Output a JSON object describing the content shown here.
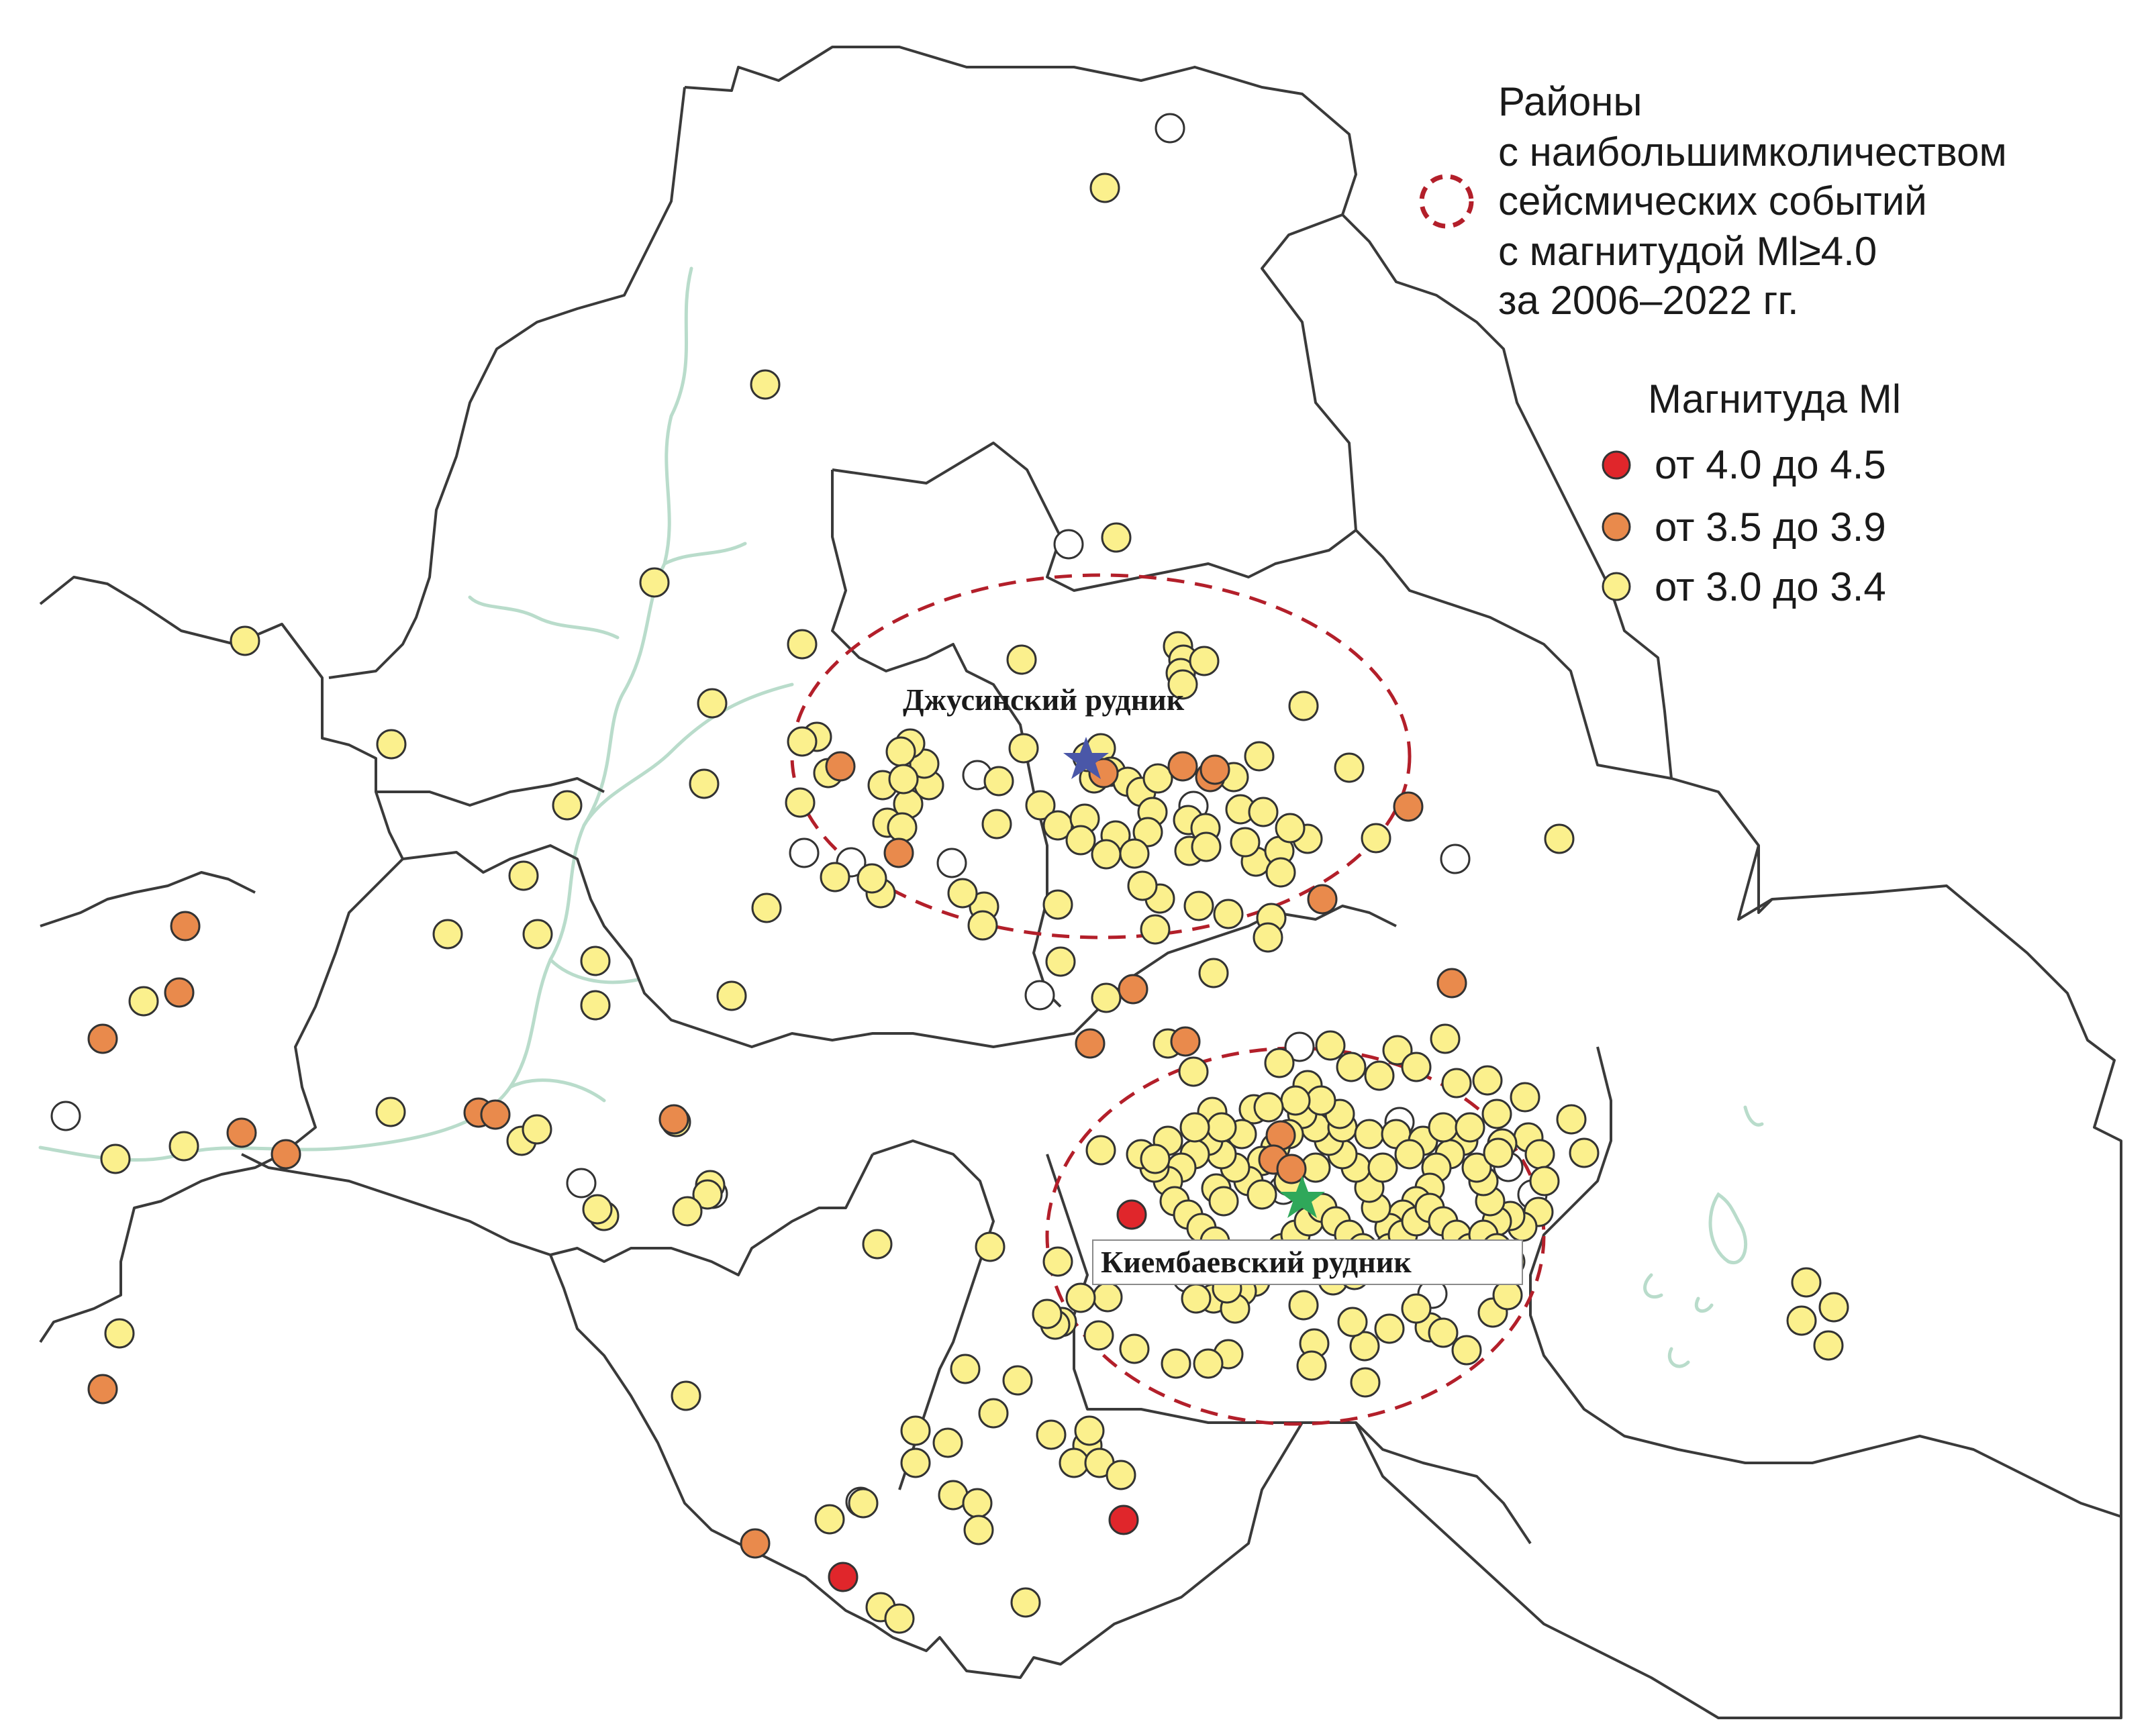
{
  "colors": {
    "red": "#e0262b",
    "orange": "#e98a4c",
    "yellow": "#fbf08d",
    "white": "#ffffff",
    "ellipse": "#b31f2a",
    "boundary": "#3a3a3a",
    "water": "#b9dccb",
    "star_blue": "#4a57a8",
    "star_green": "#2fa85a"
  },
  "legend": {
    "zone_lines": [
      "Районы",
      "с наибольшимколичеством",
      "сейсмических событий",
      "с магнитудой Ml≥4.0",
      "за 2006–2022 гг."
    ],
    "magnitude_title": "Магнитуда Ml",
    "items": [
      {
        "label": "от 4.0 до 4.5",
        "class": "red"
      },
      {
        "label": "от 3.5 до 3.9",
        "class": "orange"
      },
      {
        "label": "от 3.0 до 3.4",
        "class": "yellow"
      }
    ]
  },
  "mines": {
    "dzhusa": "Джусинский рудник",
    "kiembay": "Киембаевский рудник"
  },
  "events": {
    "red": [
      [
        1686,
        1810
      ],
      [
        1674,
        2265
      ],
      [
        1256,
        2350
      ]
    ],
    "orange": [
      [
        276,
        1380
      ],
      [
        267,
        1479
      ],
      [
        153,
        1548
      ],
      [
        360,
        1688
      ],
      [
        426,
        1720
      ],
      [
        713,
        1658
      ],
      [
        738,
        1661
      ],
      [
        1004,
        1668
      ],
      [
        1252,
        1142
      ],
      [
        1339,
        1271
      ],
      [
        1803,
        1158
      ],
      [
        2098,
        1202
      ],
      [
        2163,
        1465
      ],
      [
        1970,
        1340
      ],
      [
        1624,
        1555
      ],
      [
        1688,
        1474
      ],
      [
        1766,
        1552
      ],
      [
        1908,
        1692
      ],
      [
        1810,
        1147
      ],
      [
        1125,
        2300
      ],
      [
        153,
        2070
      ],
      [
        1644,
        1152
      ],
      [
        1762,
        1142
      ],
      [
        1897,
        1728
      ],
      [
        1924,
        1742
      ]
    ],
    "white": [
      [
        98,
        1663
      ],
      [
        866,
        1763
      ],
      [
        1743,
        191
      ],
      [
        1592,
        811
      ],
      [
        1456,
        1155
      ],
      [
        1268,
        1285
      ],
      [
        1198,
        1271
      ],
      [
        1418,
        1286
      ],
      [
        2168,
        1280
      ],
      [
        1549,
        1483
      ],
      [
        1936,
        1560
      ],
      [
        2085,
        1672
      ],
      [
        2283,
        1780
      ],
      [
        1912,
        1773
      ],
      [
        2134,
        1928
      ],
      [
        1788,
        1902
      ],
      [
        1769,
        1904
      ],
      [
        2247,
        1739
      ],
      [
        1282,
        2238
      ],
      [
        1778,
        1201
      ],
      [
        1062,
        1779
      ]
    ],
    "yellow": [
      [
        1646,
        280
      ],
      [
        1140,
        573
      ],
      [
        975,
        868
      ],
      [
        1663,
        801
      ],
      [
        365,
        955
      ],
      [
        583,
        1109
      ],
      [
        1061,
        1048
      ],
      [
        1195,
        960
      ],
      [
        1049,
        1168
      ],
      [
        845,
        1200
      ],
      [
        780,
        1305
      ],
      [
        667,
        1392
      ],
      [
        801,
        1392
      ],
      [
        887,
        1432
      ],
      [
        887,
        1498
      ],
      [
        1090,
        1484
      ],
      [
        1142,
        1353
      ],
      [
        214,
        1492
      ],
      [
        274,
        1708
      ],
      [
        172,
        1727
      ],
      [
        1007,
        1672
      ],
      [
        777,
        1700
      ],
      [
        800,
        1683
      ],
      [
        582,
        1657
      ],
      [
        1058,
        1766
      ],
      [
        1054,
        1780
      ],
      [
        1024,
        1805
      ],
      [
        900,
        1812
      ],
      [
        890,
        1802
      ],
      [
        1525,
        1115
      ],
      [
        1522,
        983
      ],
      [
        1755,
        963
      ],
      [
        1763,
        983
      ],
      [
        1759,
        1003
      ],
      [
        1794,
        985
      ],
      [
        1762,
        1020
      ],
      [
        1942,
        1052
      ],
      [
        2010,
        1144
      ],
      [
        2050,
        1249
      ],
      [
        2323,
        1250
      ],
      [
        1948,
        1250
      ],
      [
        1871,
        1284
      ],
      [
        1894,
        1368
      ],
      [
        1889,
        1397
      ],
      [
        1808,
        1450
      ],
      [
        1721,
        1385
      ],
      [
        1728,
        1339
      ],
      [
        1702,
        1320
      ],
      [
        1580,
        1433
      ],
      [
        1576,
        1348
      ],
      [
        1466,
        1351
      ],
      [
        1464,
        1379
      ],
      [
        1434,
        1331
      ],
      [
        1312,
        1331
      ],
      [
        1299,
        1309
      ],
      [
        1244,
        1307
      ],
      [
        1234,
        1152
      ],
      [
        1217,
        1098
      ],
      [
        1195,
        1105
      ],
      [
        1192,
        1196
      ],
      [
        1322,
        1226
      ],
      [
        1353,
        1198
      ],
      [
        1344,
        1233
      ],
      [
        1315,
        1170
      ],
      [
        1384,
        1170
      ],
      [
        1377,
        1138
      ],
      [
        1356,
        1108
      ],
      [
        1342,
        1120
      ],
      [
        1346,
        1161
      ],
      [
        1485,
        1228
      ],
      [
        1488,
        1164
      ],
      [
        1550,
        1200
      ],
      [
        1576,
        1230
      ],
      [
        1616,
        1220
      ],
      [
        1630,
        1160
      ],
      [
        1620,
        1128
      ],
      [
        1640,
        1115
      ],
      [
        1655,
        1150
      ],
      [
        1680,
        1165
      ],
      [
        1700,
        1180
      ],
      [
        1725,
        1160
      ],
      [
        1717,
        1210
      ],
      [
        1710,
        1240
      ],
      [
        1662,
        1245
      ],
      [
        1648,
        1273
      ],
      [
        1610,
        1252
      ],
      [
        1690,
        1272
      ],
      [
        1770,
        1222
      ],
      [
        1772,
        1268
      ],
      [
        1796,
        1234
      ],
      [
        1797,
        1262
      ],
      [
        1855,
        1255
      ],
      [
        1848,
        1206
      ],
      [
        1838,
        1158
      ],
      [
        1876,
        1127
      ],
      [
        1882,
        1210
      ],
      [
        1906,
        1268
      ],
      [
        1922,
        1234
      ],
      [
        1908,
        1300
      ],
      [
        1786,
        1350
      ],
      [
        1830,
        1362
      ],
      [
        1648,
        1487
      ],
      [
        1740,
        1555
      ],
      [
        1778,
        1597
      ],
      [
        1806,
        1657
      ],
      [
        1868,
        1653
      ],
      [
        1906,
        1584
      ],
      [
        1948,
        1617
      ],
      [
        1982,
        1558
      ],
      [
        2013,
        1590
      ],
      [
        2055,
        1603
      ],
      [
        2082,
        1565
      ],
      [
        2110,
        1590
      ],
      [
        2153,
        1548
      ],
      [
        2170,
        1614
      ],
      [
        2216,
        1610
      ],
      [
        2272,
        1635
      ],
      [
        2341,
        1668
      ],
      [
        2277,
        1695
      ],
      [
        2238,
        1704
      ],
      [
        2294,
        1720
      ],
      [
        2301,
        1760
      ],
      [
        2292,
        1806
      ],
      [
        2268,
        1828
      ],
      [
        2250,
        1812
      ],
      [
        2230,
        1820
      ],
      [
        2220,
        1790
      ],
      [
        2210,
        1760
      ],
      [
        2200,
        1740
      ],
      [
        2180,
        1700
      ],
      [
        2160,
        1720
      ],
      [
        2140,
        1740
      ],
      [
        2130,
        1770
      ],
      [
        2110,
        1790
      ],
      [
        2090,
        1810
      ],
      [
        2070,
        1830
      ],
      [
        2050,
        1800
      ],
      [
        2040,
        1770
      ],
      [
        2020,
        1740
      ],
      [
        2000,
        1720
      ],
      [
        1980,
        1700
      ],
      [
        1960,
        1680
      ],
      [
        1940,
        1660
      ],
      [
        1920,
        1690
      ],
      [
        1900,
        1710
      ],
      [
        1880,
        1730
      ],
      [
        1860,
        1760
      ],
      [
        1840,
        1740
      ],
      [
        1820,
        1720
      ],
      [
        1800,
        1700
      ],
      [
        1780,
        1720
      ],
      [
        1760,
        1740
      ],
      [
        1740,
        1760
      ],
      [
        1720,
        1740
      ],
      [
        1700,
        1720
      ],
      [
        1750,
        1790
      ],
      [
        1770,
        1810
      ],
      [
        1790,
        1830
      ],
      [
        1810,
        1850
      ],
      [
        1830,
        1870
      ],
      [
        1850,
        1890
      ],
      [
        1870,
        1910
      ],
      [
        1890,
        1880
      ],
      [
        1910,
        1860
      ],
      [
        1930,
        1840
      ],
      [
        1950,
        1820
      ],
      [
        1970,
        1800
      ],
      [
        1990,
        1820
      ],
      [
        2010,
        1840
      ],
      [
        2030,
        1860
      ],
      [
        2050,
        1880
      ],
      [
        2070,
        1860
      ],
      [
        2090,
        1840
      ],
      [
        2110,
        1820
      ],
      [
        2130,
        1800
      ],
      [
        2150,
        1820
      ],
      [
        2170,
        1840
      ],
      [
        2190,
        1860
      ],
      [
        2210,
        1840
      ],
      [
        2230,
        1860
      ],
      [
        2250,
        1880
      ],
      [
        2000,
        1680
      ],
      [
        2040,
        1690
      ],
      [
        2080,
        1690
      ],
      [
        2120,
        1700
      ],
      [
        1960,
        1740
      ],
      [
        1920,
        1760
      ],
      [
        1880,
        1780
      ],
      [
        2060,
        1740
      ],
      [
        2100,
        1720
      ],
      [
        2150,
        1680
      ],
      [
        2190,
        1680
      ],
      [
        2230,
        1660
      ],
      [
        1996,
        1660
      ],
      [
        1968,
        1640
      ],
      [
        1930,
        1640
      ],
      [
        1890,
        1650
      ],
      [
        1850,
        1690
      ],
      [
        1820,
        1680
      ],
      [
        1780,
        1680
      ],
      [
        1740,
        1700
      ],
      [
        1812,
        1771
      ],
      [
        1823,
        1790
      ],
      [
        1986,
        1908
      ],
      [
        2018,
        1900
      ],
      [
        1850,
        1924
      ],
      [
        1942,
        1945
      ],
      [
        1808,
        1935
      ],
      [
        1782,
        1935
      ],
      [
        1840,
        1950
      ],
      [
        1828,
        1920
      ],
      [
        1650,
        1933
      ],
      [
        1610,
        1934
      ],
      [
        1582,
        1970
      ],
      [
        1572,
        1974
      ],
      [
        1637,
        1990
      ],
      [
        1690,
        2010
      ],
      [
        1752,
        2032
      ],
      [
        1830,
        2018
      ],
      [
        1800,
        2032
      ],
      [
        1958,
        2002
      ],
      [
        2033,
        2006
      ],
      [
        2130,
        1978
      ],
      [
        2150,
        1986
      ],
      [
        2185,
        2012
      ],
      [
        2224,
        1956
      ],
      [
        2246,
        1930
      ],
      [
        2360,
        1718
      ],
      [
        2691,
        1911
      ],
      [
        2732,
        1948
      ],
      [
        2684,
        1968
      ],
      [
        2724,
        2005
      ],
      [
        1640,
        1714
      ],
      [
        1721,
        1727
      ],
      [
        1307,
        1854
      ],
      [
        1475,
        1858
      ],
      [
        1576,
        1880
      ],
      [
        1560,
        1958
      ],
      [
        1438,
        2040
      ],
      [
        1516,
        2057
      ],
      [
        1566,
        2138
      ],
      [
        1620,
        2154
      ],
      [
        1623,
        2132
      ],
      [
        1600,
        2180
      ],
      [
        1638,
        2180
      ],
      [
        1670,
        2198
      ],
      [
        1480,
        2106
      ],
      [
        1412,
        2150
      ],
      [
        1364,
        2132
      ],
      [
        1420,
        2228
      ],
      [
        1456,
        2240
      ],
      [
        1458,
        2280
      ],
      [
        1236,
        2264
      ],
      [
        1286,
        2240
      ],
      [
        1312,
        2395
      ],
      [
        1340,
        2412
      ],
      [
        1528,
        2388
      ],
      [
        1022,
        2080
      ],
      [
        1364,
        2180
      ],
      [
        178,
        1987
      ],
      [
        2232,
        1718
      ],
      [
        2015,
        1970
      ],
      [
        2070,
        1980
      ],
      [
        2110,
        1950
      ],
      [
        2034,
        2060
      ],
      [
        1954,
        2035
      ]
    ]
  }
}
